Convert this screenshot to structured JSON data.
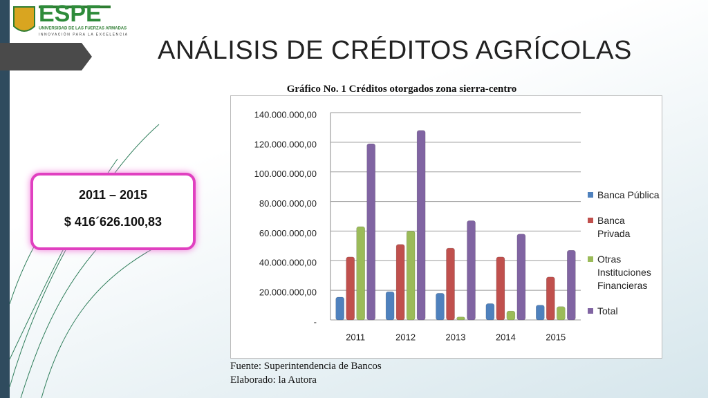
{
  "logo": {
    "name": "ESPE",
    "subtitle": "UNIVERSIDAD DE LAS FUERZAS ARMADAS",
    "motto": "INNOVACIÓN PARA LA EXCELENCIA"
  },
  "title": "ANÁLISIS DE CRÉDITOS AGRÍCOLAS",
  "highlight": {
    "period": "2011 – 2015",
    "amount": "$ 416´626.100,83"
  },
  "source": "Fuente: Superintendencia de Bancos",
  "author": "Elaborado: la Autora",
  "chart_data": {
    "type": "bar",
    "title": "Gráfico No. 1 Créditos otorgados zona sierra-centro",
    "categories": [
      "2011",
      "2012",
      "2013",
      "2014",
      "2015"
    ],
    "series": [
      {
        "name": "Banca Pública",
        "color": "#4f81bd",
        "values": [
          15400000,
          19000000,
          18000000,
          11000000,
          10000000
        ]
      },
      {
        "name": "Banca Privada",
        "color": "#c0504d",
        "values": [
          42500000,
          51000000,
          48500000,
          42500000,
          29000000
        ]
      },
      {
        "name": "Otras Instituciones Financieras",
        "color": "#9bbb59",
        "values": [
          63000000,
          60000000,
          2000000,
          6000000,
          9000000
        ]
      },
      {
        "name": "Total",
        "color": "#8064a2",
        "values": [
          119000000,
          128000000,
          67000000,
          58000000,
          47000000
        ]
      }
    ],
    "ylim": [
      0,
      140000000
    ],
    "yticks": [
      {
        "value": 0,
        "label": "-"
      },
      {
        "value": 20000000,
        "label": "20.000.000,00"
      },
      {
        "value": 40000000,
        "label": "40.000.000,00"
      },
      {
        "value": 60000000,
        "label": "60.000.000,00"
      },
      {
        "value": 80000000,
        "label": "80.000.000,00"
      },
      {
        "value": 100000000,
        "label": "100.000.000,00"
      },
      {
        "value": 120000000,
        "label": "120.000.000,00"
      },
      {
        "value": 140000000,
        "label": "140.000.000,00"
      }
    ],
    "grid": true,
    "legend": "right"
  }
}
